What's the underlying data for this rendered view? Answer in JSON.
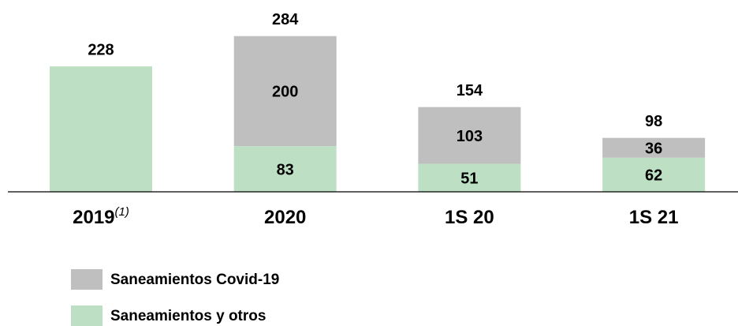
{
  "chart_data": {
    "type": "stacked_bar",
    "categories": [
      "2019",
      "2020",
      "1S 20",
      "1S 21"
    ],
    "annotations": [
      {
        "category": "2019",
        "text": "(1)"
      }
    ],
    "series": [
      {
        "name": "Saneamientos y otros",
        "color": "#bde0c4",
        "values": [
          228,
          83,
          51,
          62
        ]
      },
      {
        "name": "Saneamientos Covid-19",
        "color": "#bfbfbf",
        "values": [
          null,
          200,
          103,
          36
        ]
      }
    ],
    "totals": [
      228,
      284,
      154,
      98
    ],
    "ylim": [
      0,
      300
    ]
  }
}
